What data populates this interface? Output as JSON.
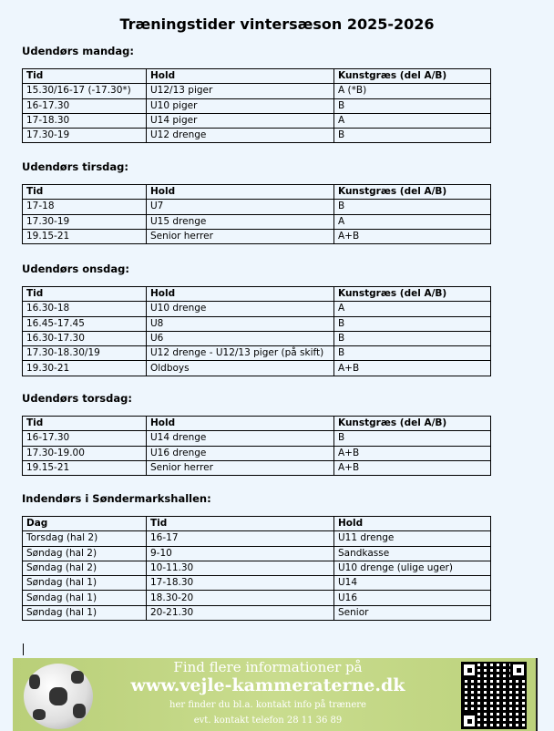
{
  "title": "Træningstider vintersæson 2025-2026",
  "sections": [
    {
      "heading": "Udendørs mandag:",
      "headers": [
        "Tid",
        "Hold",
        "Kunstgræs (del A/B)"
      ],
      "rows": [
        [
          "15.30/16-17 (-17.30*)",
          "U12/13 piger",
          "A (*B)"
        ],
        [
          "16-17.30",
          "U10 piger",
          "B"
        ],
        [
          "17-18.30",
          "U14 piger",
          "A"
        ],
        [
          "17.30-19",
          "U12 drenge",
          "B"
        ]
      ]
    },
    {
      "heading": "Udendørs tirsdag:",
      "headers": [
        "Tid",
        "Hold",
        "Kunstgræs (del A/B)"
      ],
      "rows": [
        [
          "17-18",
          "U7",
          "B"
        ],
        [
          "17.30-19",
          "U15 drenge",
          "A"
        ],
        [
          "19.15-21",
          "Senior herrer",
          "A+B"
        ]
      ]
    },
    {
      "heading": "Udendørs onsdag:",
      "headers": [
        "Tid",
        "Hold",
        "Kunstgræs (del A/B)"
      ],
      "rows": [
        [
          "16.30-18",
          "U10 drenge",
          "A"
        ],
        [
          "16.45-17.45",
          "U8",
          "B"
        ],
        [
          "16.30-17.30",
          "U6",
          "B"
        ],
        [
          "17.30-18.30/19",
          "U12 drenge - U12/13 piger (på skift)",
          "B"
        ],
        [
          "19.30-21",
          "Oldboys",
          "A+B"
        ]
      ]
    },
    {
      "heading": "Udendørs torsdag:",
      "headers": [
        "Tid",
        "Hold",
        "Kunstgræs (del A/B)"
      ],
      "rows": [
        [
          "16-17.30",
          "U14 drenge",
          "B"
        ],
        [
          "17.30-19.00",
          "U16 drenge",
          "A+B"
        ],
        [
          "19.15-21",
          "Senior herrer",
          "A+B"
        ]
      ]
    },
    {
      "heading": "Indendørs i Søndermarkshallen:",
      "headers": [
        "Dag",
        "Tid",
        "Hold"
      ],
      "rows": [
        [
          "Torsdag (hal 2)",
          "16-17",
          "U11 drenge"
        ],
        [
          "Søndag (hal 2)",
          "9-10",
          "Sandkasse"
        ],
        [
          "Søndag (hal 2)",
          "10-11.30",
          "U10 drenge (ulige uger)"
        ],
        [
          "Søndag (hal 1)",
          "17-18.30",
          "U14"
        ],
        [
          "Søndag (hal 1)",
          "18.30-20",
          "U16"
        ],
        [
          "Søndag (hal 1)",
          "20-21.30",
          "Senior"
        ]
      ]
    }
  ],
  "banner": {
    "line1": "Find flere informationer på",
    "line2": "www.vejle-kammeraterne.dk",
    "line3": "her finder du bl.a. kontakt info på trænere",
    "line4": "evt. kontakt telefon 28 11 36 89",
    "icons": [
      "soccer-ball-icon",
      "qr-code-icon"
    ],
    "color": "#c2d685"
  }
}
